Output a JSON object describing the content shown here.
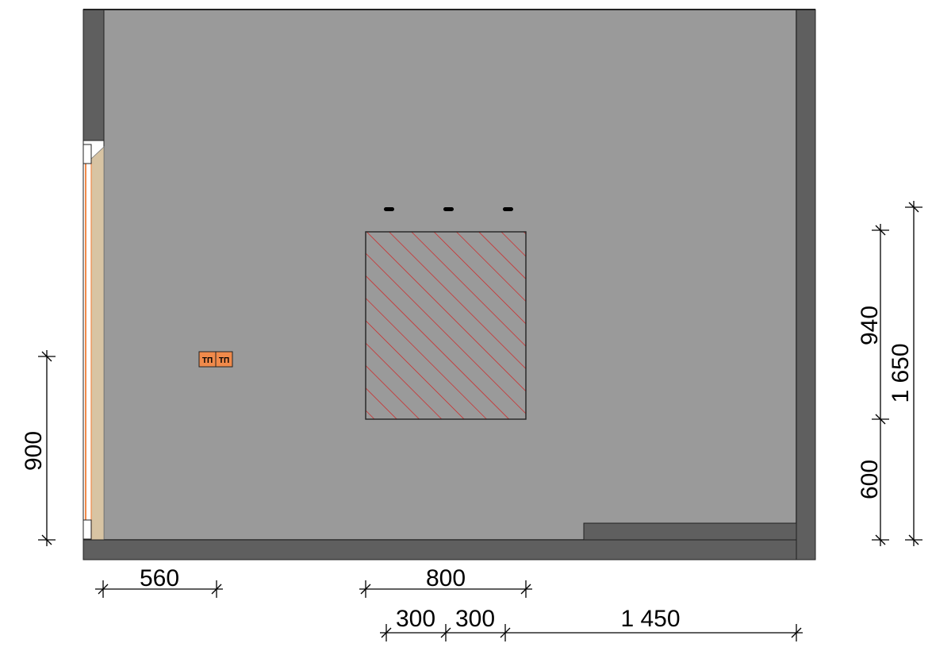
{
  "colors": {
    "floor": "#9a9a9a",
    "wall": "#5f5f5f",
    "hatch": "#d21f1f",
    "outlet": "#f08a4b",
    "window_frame": "#d8b98c"
  },
  "outlet": {
    "labels": [
      "ТП",
      "ТП"
    ]
  },
  "dimensions": {
    "left_vertical": "900",
    "right_upper": "940",
    "right_lower": "600",
    "right_total": "1 650",
    "bottom_left": "560",
    "bottom_center": "800",
    "bottom_a": "300",
    "bottom_b": "300",
    "bottom_right": "1 450"
  }
}
